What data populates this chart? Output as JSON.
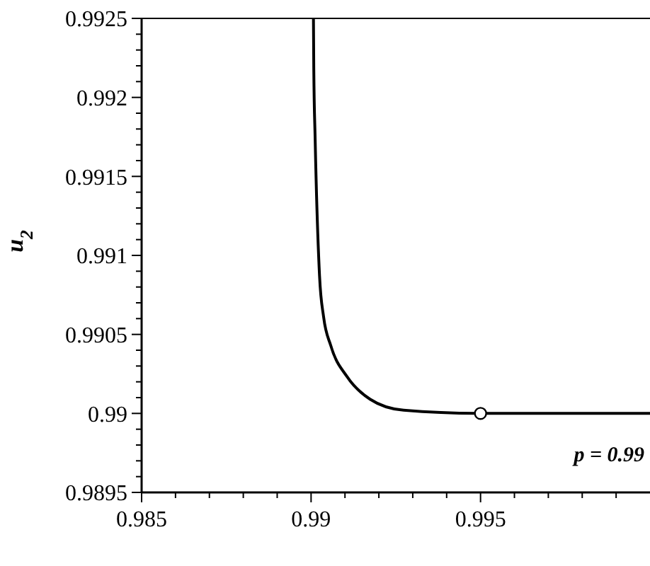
{
  "chart_data": {
    "type": "line",
    "ylabel": "u$_{2}$",
    "xlim": [
      0.985,
      1.0
    ],
    "ylim": [
      0.9895,
      0.9925
    ],
    "xticks": [
      0.985,
      0.99,
      0.995,
      {
        "value": 0.986,
        "label": null
      },
      {
        "value": 0.987,
        "label": null
      },
      {
        "value": 0.988,
        "label": null
      },
      {
        "value": 0.989,
        "label": null
      },
      {
        "value": 0.991,
        "label": null
      },
      {
        "value": 0.992,
        "label": null
      },
      {
        "value": 0.993,
        "label": null
      },
      {
        "value": 0.994,
        "label": null
      },
      {
        "value": 0.996,
        "label": null
      },
      {
        "value": 0.997,
        "label": null
      },
      {
        "value": 0.998,
        "label": null
      },
      {
        "value": 0.999,
        "label": null
      }
    ],
    "yticks": [
      0.9895,
      0.99,
      0.9905,
      0.991,
      0.9915,
      0.992,
      0.9925,
      {
        "value": 0.9896,
        "label": null
      },
      {
        "value": 0.9897,
        "label": null
      },
      {
        "value": 0.9898,
        "label": null
      },
      {
        "value": 0.9899,
        "label": null
      },
      {
        "value": 0.9901,
        "label": null
      },
      {
        "value": 0.9902,
        "label": null
      },
      {
        "value": 0.9903,
        "label": null
      },
      {
        "value": 0.9904,
        "label": null
      },
      {
        "value": 0.9906,
        "label": null
      },
      {
        "value": 0.9907,
        "label": null
      },
      {
        "value": 0.9908,
        "label": null
      },
      {
        "value": 0.9909,
        "label": null
      },
      {
        "value": 0.9911,
        "label": null
      },
      {
        "value": 0.9912,
        "label": null
      },
      {
        "value": 0.9913,
        "label": null
      },
      {
        "value": 0.9914,
        "label": null
      },
      {
        "value": 0.9916,
        "label": null
      },
      {
        "value": 0.9917,
        "label": null
      },
      {
        "value": 0.9918,
        "label": null
      },
      {
        "value": 0.9919,
        "label": null
      },
      {
        "value": 0.9921,
        "label": null
      },
      {
        "value": 0.9922,
        "label": null
      },
      {
        "value": 0.9923,
        "label": null
      },
      {
        "value": 0.9924,
        "label": null
      }
    ],
    "series": [
      {
        "color": "#000000",
        "marker": "none",
        "x": [
          0.99007,
          0.99008,
          0.99012,
          0.99025,
          0.99037,
          0.99058,
          0.99107,
          0.99174,
          0.99273,
          0.99492,
          1.0
        ],
        "values": [
          0.9925,
          0.99218,
          0.99174,
          0.99087,
          0.99061,
          0.99043,
          0.99023,
          0.99009,
          0.99002,
          0.99,
          0.99
        ]
      },
      {
        "type": "scatter",
        "color": "#ffffff",
        "marker": "circle",
        "x": [
          0.995
        ],
        "values": [
          0.99
        ]
      }
    ],
    "annotations": [
      "p = 0.99"
    ],
    "grid": false
  }
}
